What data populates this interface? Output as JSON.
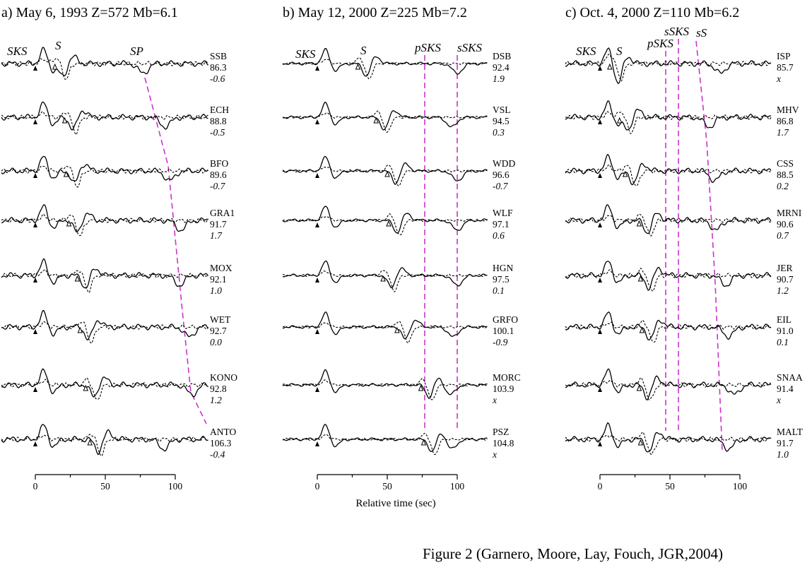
{
  "caption": "Figure 2 (Garnero, Moore, Lay, Fouch, JGR,2004)",
  "x_axis_label": "Relative time (sec)",
  "panels": [
    {
      "title": "a) May 6, 1993 Z=572 Mb=6.1",
      "phase_labels": [
        "SKS",
        "S",
        "SP"
      ],
      "traces": [
        {
          "station": "SSB",
          "distance": "86.3",
          "value": "-0.6"
        },
        {
          "station": "ECH",
          "distance": "88.8",
          "value": "-0.5"
        },
        {
          "station": "BFO",
          "distance": "89.6",
          "value": "-0.7"
        },
        {
          "station": "GRA1",
          "distance": "91.7",
          "value": "1.7"
        },
        {
          "station": "MOX",
          "distance": "92.1",
          "value": "1.0"
        },
        {
          "station": "WET",
          "distance": "92.7",
          "value": "0.0"
        },
        {
          "station": "KONO",
          "distance": "92.8",
          "value": "1.2"
        },
        {
          "station": "ANTO",
          "distance": "106.3",
          "value": "-0.4"
        }
      ],
      "ticks": [
        "0",
        "50",
        "100"
      ]
    },
    {
      "title": "b) May 12, 2000 Z=225 Mb=7.2",
      "phase_labels": [
        "SKS",
        "S",
        "pSKS",
        "sSKS"
      ],
      "traces": [
        {
          "station": "DSB",
          "distance": "92.4",
          "value": "1.9"
        },
        {
          "station": "VSL",
          "distance": "94.5",
          "value": "0.3"
        },
        {
          "station": "WDD",
          "distance": "96.6",
          "value": "-0.7"
        },
        {
          "station": "WLF",
          "distance": "97.1",
          "value": "0.6"
        },
        {
          "station": "HGN",
          "distance": "97.5",
          "value": "0.1"
        },
        {
          "station": "GRFO",
          "distance": "100.1",
          "value": "-0.9"
        },
        {
          "station": "MORC",
          "distance": "103.9",
          "value": "x"
        },
        {
          "station": "PSZ",
          "distance": "104.8",
          "value": "x"
        }
      ],
      "ticks": [
        "0",
        "50",
        "100"
      ]
    },
    {
      "title": "c) Oct. 4, 2000 Z=110 Mb=6.2",
      "phase_labels": [
        "SKS",
        "S",
        "pSKS",
        "sSKS",
        "sS"
      ],
      "traces": [
        {
          "station": "ISP",
          "distance": "85.7",
          "value": "x"
        },
        {
          "station": "MHV",
          "distance": "86.8",
          "value": "1.7"
        },
        {
          "station": "CSS",
          "distance": "88.5",
          "value": "0.2"
        },
        {
          "station": "MRNI",
          "distance": "90.6",
          "value": "0.7"
        },
        {
          "station": "JER",
          "distance": "90.7",
          "value": "1.2"
        },
        {
          "station": "EIL",
          "distance": "91.0",
          "value": "0.1"
        },
        {
          "station": "SNAA",
          "distance": "91.4",
          "value": "x"
        },
        {
          "station": "MALT",
          "distance": "91.7",
          "value": "1.0"
        }
      ],
      "ticks": [
        "0",
        "50",
        "100"
      ]
    }
  ],
  "colors": {
    "ink": "#000000",
    "guide": "#cc33cc"
  }
}
